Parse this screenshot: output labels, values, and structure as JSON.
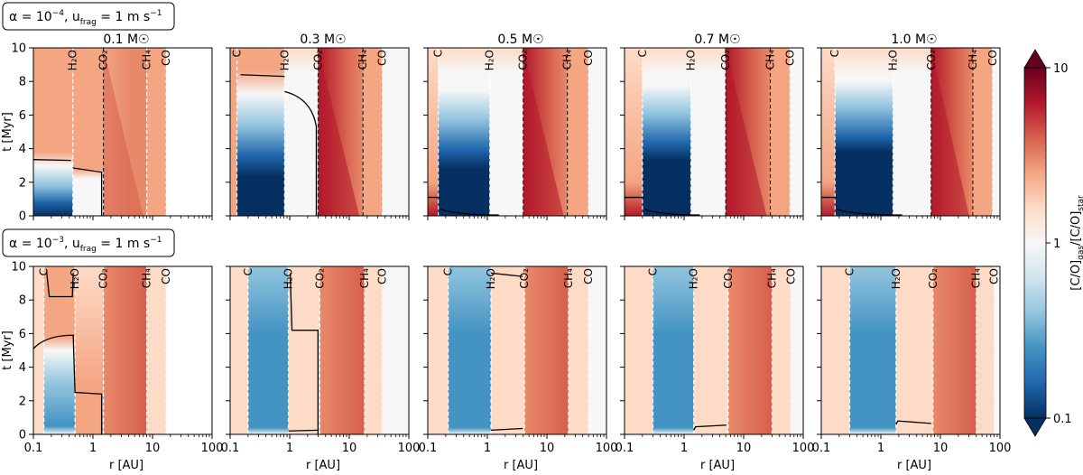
{
  "chart_data": {
    "type": "heatmap",
    "row_titles": [
      "α = 10⁻⁴, u_frag = 1 m s⁻¹",
      "α = 10⁻³, u_frag = 1 m s⁻¹"
    ],
    "row_title_parts": [
      {
        "alpha": "α = 10",
        "alpha_exp": "−4",
        "u": ", u",
        "u_sub": "frag",
        "rest": " = 1 m s",
        "rest_exp": "−1"
      },
      {
        "alpha": "α = 10",
        "alpha_exp": "−3",
        "u": ", u",
        "u_sub": "frag",
        "rest": " = 1 m s",
        "rest_exp": "−1"
      }
    ],
    "column_titles": [
      "0.1 M☉",
      "0.3 M☉",
      "0.5 M☉",
      "0.7 M☉",
      "1.0 M☉"
    ],
    "xlabel": "r [AU]",
    "ylabel": "t [Myr]",
    "xscale": "log",
    "xlim": [
      0.1,
      100
    ],
    "ylim": [
      0,
      10
    ],
    "xticks": [
      "0.1",
      "1",
      "10",
      "100"
    ],
    "yticks": [
      "0",
      "2",
      "4",
      "6",
      "8",
      "10"
    ],
    "colorbar": {
      "label": "[C/O]gas/[C/O]star",
      "label_parts": {
        "a": "[C/O]",
        "a_sub": "gas",
        "b": "/[C/O]",
        "b_sub": "star"
      },
      "scale": "log",
      "range": [
        0.1,
        10
      ],
      "ticks": [
        "0.1",
        "1",
        "10"
      ],
      "colormap": "RdBu_r",
      "extend": "both"
    },
    "snowline_labels": [
      "C",
      "H₂O",
      "CO₂",
      "CH₄",
      "CO"
    ],
    "panels": [
      [
        {
          "mass": 0.1,
          "snowlines_au": {
            "H2O": 0.46,
            "CO2": 1.5,
            "CH4": 8.0,
            "CO": 17
          }
        },
        {
          "mass": 0.3,
          "snowlines_au": {
            "C": 0.13,
            "H2O": 0.82,
            "CO2": 3.0,
            "CH4": 17,
            "CO": 36
          }
        },
        {
          "mass": 0.5,
          "snowlines_au": {
            "C": 0.15,
            "H2O": 1.1,
            "CO2": 4.0,
            "CH4": 22,
            "CO": 50
          }
        },
        {
          "mass": 0.7,
          "snowlines_au": {
            "C": 0.2,
            "H2O": 1.3,
            "CO2": 5.0,
            "CH4": 28,
            "CO": 60
          }
        },
        {
          "mass": 1.0,
          "snowlines_au": {
            "C": 0.17,
            "H2O": 1.6,
            "CO2": 7.0,
            "CH4": 35,
            "CO": 75
          }
        }
      ],
      [
        {
          "mass": 0.1,
          "snowlines_au": {
            "C": 0.15,
            "H2O": 0.5,
            "CO2": 1.5,
            "CH4": 8.0,
            "CO": 17
          }
        },
        {
          "mass": 0.3,
          "snowlines_au": {
            "C": 0.2,
            "H2O": 0.95,
            "CO2": 3.2,
            "CH4": 18,
            "CO": 36
          }
        },
        {
          "mass": 0.5,
          "snowlines_au": {
            "C": 0.22,
            "H2O": 1.15,
            "CO2": 4.2,
            "CH4": 23,
            "CO": 50
          }
        },
        {
          "mass": 0.7,
          "snowlines_au": {
            "C": 0.3,
            "H2O": 1.45,
            "CO2": 5.5,
            "CH4": 30,
            "CO": 62
          }
        },
        {
          "mass": 1.0,
          "snowlines_au": {
            "C": 0.3,
            "H2O": 1.8,
            "CO2": 7.5,
            "CH4": 40,
            "CO": 80
          }
        }
      ]
    ]
  }
}
